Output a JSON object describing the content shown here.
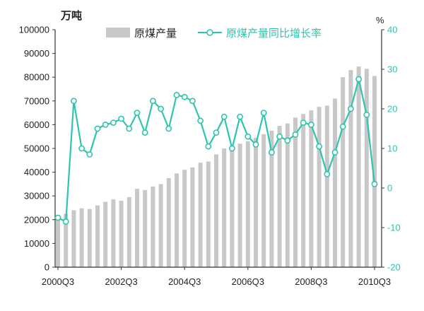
{
  "chart_data": {
    "type": "bar",
    "ylabel": "万吨",
    "y2label": "%",
    "ylim": [
      0,
      100000
    ],
    "y2lim": [
      -20,
      40
    ],
    "yticks": [
      0,
      10000,
      20000,
      30000,
      40000,
      50000,
      60000,
      70000,
      80000,
      90000,
      100000
    ],
    "y2ticks": [
      -20,
      -10,
      0,
      10,
      20,
      30,
      40
    ],
    "xticks": [
      "2000Q3",
      "2002Q3",
      "2004Q3",
      "2006Q3",
      "2008Q3",
      "2010Q3"
    ],
    "grid": false,
    "legend_position": "top",
    "colors": {
      "axis": "#333333",
      "right_axis_text": "#2fc4ae",
      "marker_fill": "#ffffff"
    },
    "series": [
      {
        "name": "原煤产量",
        "type": "bar",
        "axis": "left",
        "color": "#c8c8c8",
        "values": [
          21500,
          22500,
          24000,
          24800,
          24500,
          26000,
          27500,
          28500,
          28000,
          29500,
          33000,
          32500,
          34000,
          35000,
          37500,
          39500,
          41000,
          42000,
          44000,
          44500,
          47500,
          50000,
          51000,
          52000,
          53000,
          54500,
          56000,
          57500,
          59500,
          60500,
          63000,
          64500,
          66000,
          67500,
          68000,
          71000,
          80000,
          83000,
          84500,
          83500,
          80500
        ]
      },
      {
        "name": "原煤产量同比增长率",
        "type": "line",
        "axis": "right",
        "color": "#2fc4ae",
        "marker": "circle",
        "values": [
          -7.5,
          -8.5,
          22,
          10,
          8.5,
          15,
          16,
          16.5,
          17.5,
          15,
          19,
          14,
          22,
          20,
          15,
          23.5,
          23,
          22,
          17,
          10.5,
          14,
          18,
          10,
          18,
          13,
          11,
          19,
          9,
          13,
          12,
          13.5,
          16.5,
          16,
          10.5,
          3.5,
          9,
          15.5,
          20,
          27.5,
          18.5,
          1
        ]
      }
    ]
  }
}
